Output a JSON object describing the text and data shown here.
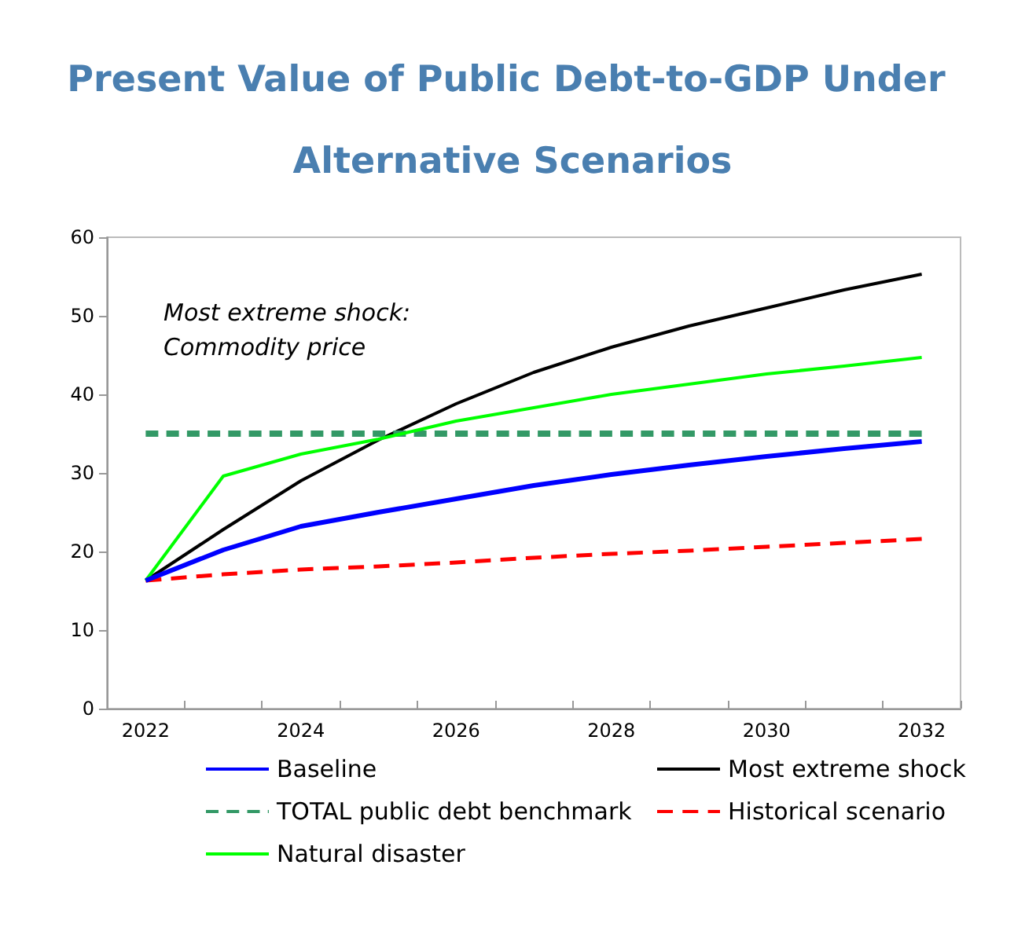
{
  "chart_data": {
    "type": "line",
    "title": "Present Value of Public Debt-to-GDP Under Alternative Scenarios",
    "categories": [
      "2022",
      null,
      "2024",
      null,
      "2026",
      null,
      "2028",
      null,
      "2030",
      null,
      "2032"
    ],
    "series": [
      {
        "name": "Baseline",
        "color": "#0000ff",
        "values": [
          16.3,
          20.2,
          23.2,
          25.0,
          26.7,
          28.4,
          29.8,
          31.0,
          32.1,
          33.1,
          34.0
        ]
      },
      {
        "name": "Most extreme shock",
        "color": "#000000",
        "values": [
          16.3,
          22.8,
          29.0,
          34.2,
          38.8,
          42.8,
          46.0,
          48.7,
          51.0,
          53.3,
          55.3
        ]
      },
      {
        "name": "TOTAL public debt benchmark",
        "color": "#339966",
        "line_style": "dashed",
        "values": [
          35,
          35,
          35,
          35,
          35,
          35,
          35,
          35,
          35,
          35,
          35
        ]
      },
      {
        "name": "Historical scenario",
        "color": "#ff0000",
        "line_style": "dashed",
        "values": [
          16.3,
          17.1,
          17.7,
          18.1,
          18.6,
          19.2,
          19.7,
          20.1,
          20.6,
          21.1,
          21.6
        ]
      },
      {
        "name": "Natural disaster",
        "color": "#00ff00",
        "values": [
          16.3,
          29.6,
          32.4,
          34.3,
          36.6,
          38.3,
          40.0,
          41.3,
          42.6,
          43.6,
          44.7
        ]
      }
    ],
    "ylim": [
      0,
      60
    ],
    "yticks": [
      0,
      10,
      20,
      30,
      40,
      50,
      60
    ],
    "grid": false,
    "legend": "bottom",
    "marker": "none",
    "line_style": "solid",
    "annotations": [
      "Most extreme shock:\nCommodity price"
    ]
  }
}
